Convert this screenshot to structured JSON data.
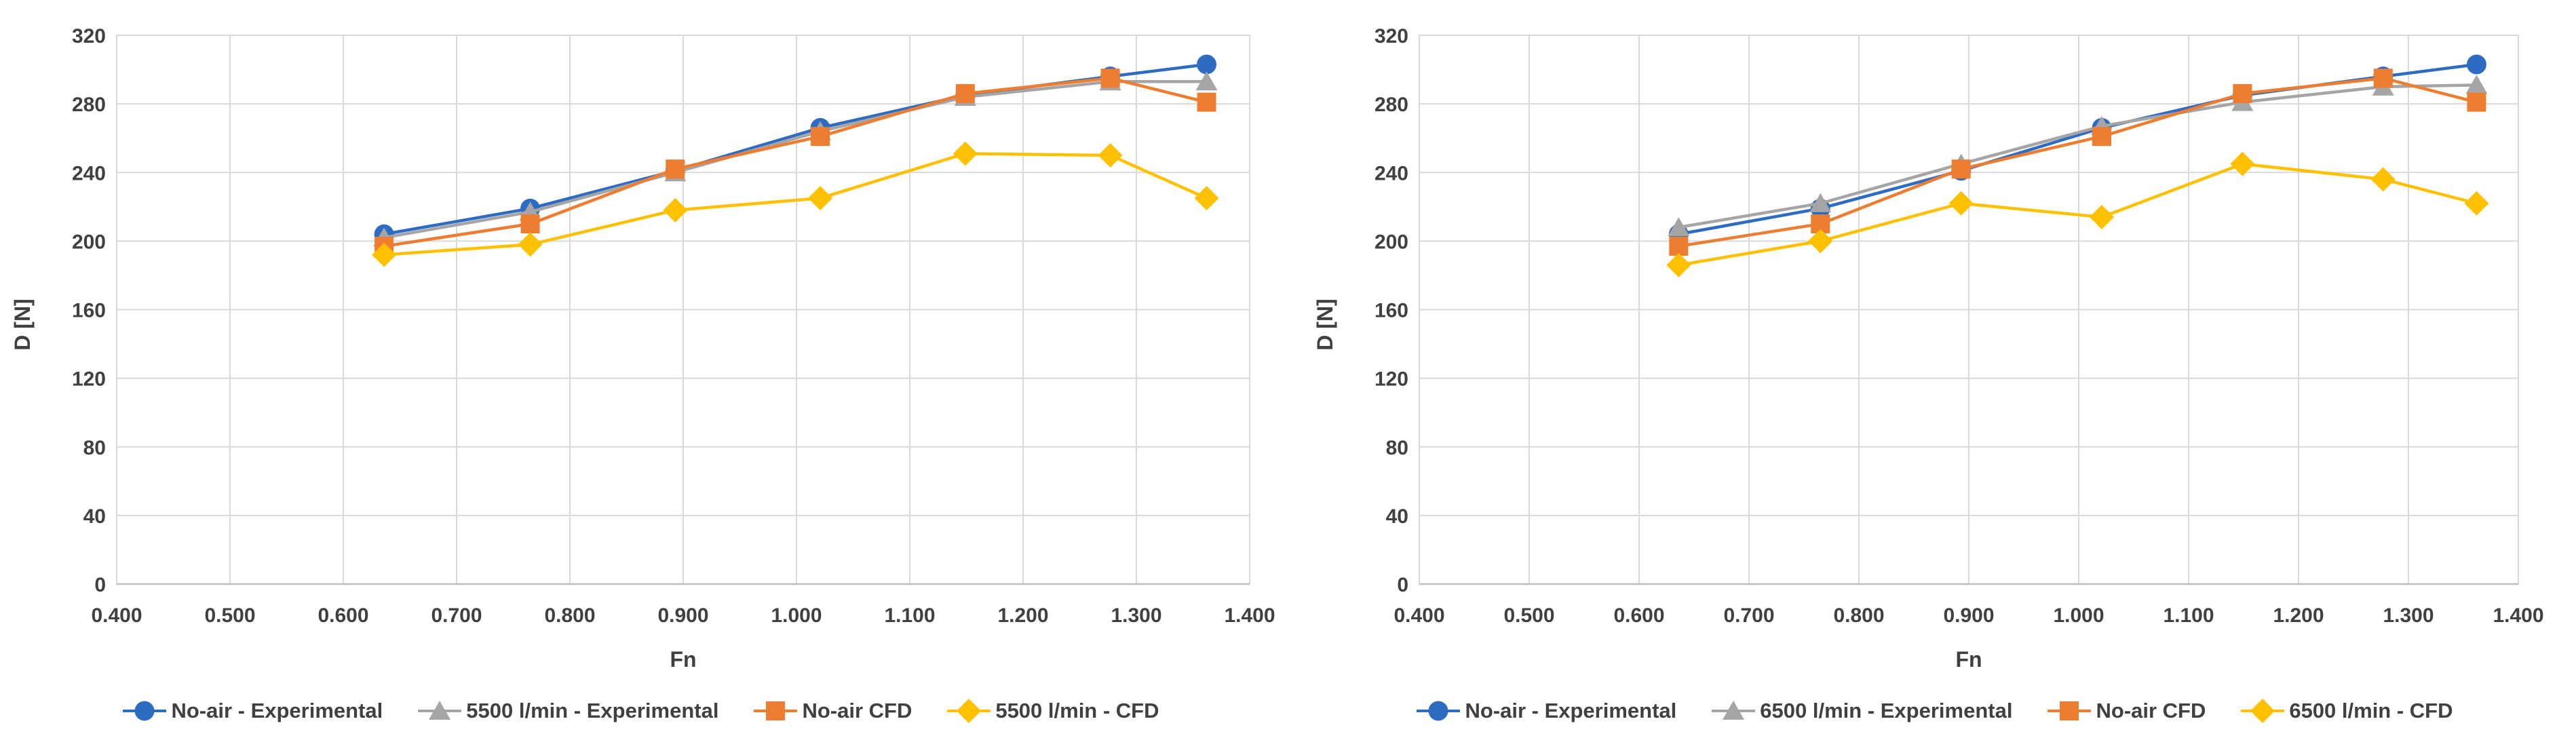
{
  "page": {
    "background": "#ffffff"
  },
  "style": {
    "text_color": "#404040",
    "grid_color": "#D9D9D9",
    "axis_line_color": "#BFBFBF",
    "plot_border_color": "#D9D9D9"
  },
  "chart_data": [
    {
      "type": "line",
      "title": "",
      "xlabel": "Fn",
      "ylabel": "D [N]",
      "xlim": [
        0.4,
        1.4
      ],
      "ylim": [
        0,
        320
      ],
      "grid": true,
      "legend_position": "bottom",
      "x_tick_labels": [
        "0.400",
        "0.500",
        "0.600",
        "0.700",
        "0.800",
        "0.900",
        "1.000",
        "1.100",
        "1.200",
        "1.300",
        "1.400"
      ],
      "y_tick_labels": [
        "0",
        "40",
        "80",
        "120",
        "160",
        "200",
        "240",
        "280",
        "320"
      ],
      "x": [
        0.636,
        0.765,
        0.893,
        1.021,
        1.149,
        1.277,
        1.362
      ],
      "series": [
        {
          "name": "No-air - Experimental",
          "marker": "circle",
          "color": "#2E6CC4",
          "values": [
            204,
            219,
            241,
            266,
            285,
            296,
            303
          ]
        },
        {
          "name": "5500 l/min - Experimental",
          "marker": "triangle",
          "color": "#A5A5A5",
          "values": [
            202,
            217,
            240,
            264,
            284,
            293,
            293
          ]
        },
        {
          "name": "No-air CFD",
          "marker": "square",
          "color": "#ED7D31",
          "values": [
            197,
            210,
            242,
            261,
            286,
            295,
            281
          ]
        },
        {
          "name": "5500 l/min - CFD",
          "marker": "diamond",
          "color": "#FFC000",
          "values": [
            192,
            198,
            218,
            225,
            251,
            250,
            225
          ]
        }
      ]
    },
    {
      "type": "line",
      "title": "",
      "xlabel": "Fn",
      "ylabel": "D [N]",
      "xlim": [
        0.4,
        1.4
      ],
      "ylim": [
        0,
        320
      ],
      "grid": true,
      "legend_position": "bottom",
      "x_tick_labels": [
        "0.400",
        "0.500",
        "0.600",
        "0.700",
        "0.800",
        "0.900",
        "1.000",
        "1.100",
        "1.200",
        "1.300",
        "1.400"
      ],
      "y_tick_labels": [
        "0",
        "40",
        "80",
        "120",
        "160",
        "200",
        "240",
        "280",
        "320"
      ],
      "x": [
        0.636,
        0.765,
        0.893,
        1.021,
        1.149,
        1.277,
        1.362
      ],
      "series": [
        {
          "name": "No-air - Experimental",
          "marker": "circle",
          "color": "#2E6CC4",
          "values": [
            204,
            219,
            241,
            266,
            285,
            296,
            303
          ]
        },
        {
          "name": "6500 l/min - Experimental",
          "marker": "triangle",
          "color": "#A5A5A5",
          "values": [
            208,
            222,
            245,
            267,
            281,
            290,
            291
          ]
        },
        {
          "name": "No-air CFD",
          "marker": "square",
          "color": "#ED7D31",
          "values": [
            197,
            210,
            242,
            261,
            286,
            295,
            281
          ]
        },
        {
          "name": "6500 l/min - CFD",
          "marker": "diamond",
          "color": "#FFC000",
          "values": [
            186,
            200,
            222,
            214,
            245,
            236,
            222
          ]
        }
      ]
    }
  ]
}
